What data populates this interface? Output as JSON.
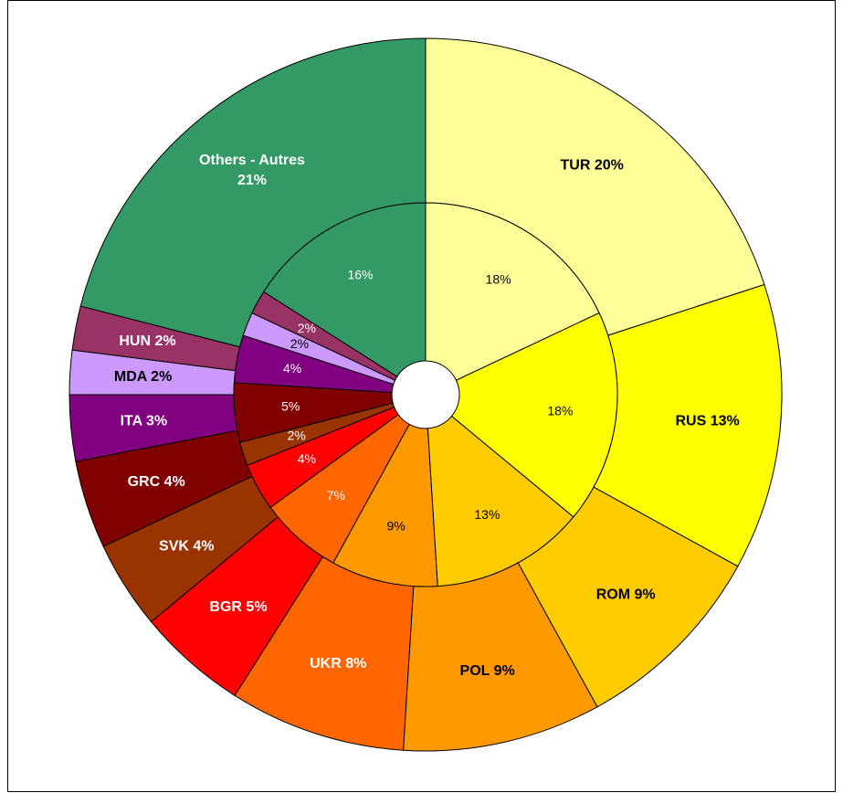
{
  "chart_data": {
    "type": "doughnut",
    "series": [
      {
        "values": [
          20,
          13,
          9,
          9,
          8,
          5,
          4,
          4,
          3,
          2,
          2,
          21
        ],
        "value_labels": [
          "TUR 20%",
          "RUS 13%",
          "ROM 9%",
          "POL 9%",
          "UKR 8%",
          "BGR 5%",
          "SVK 4%",
          "GRC 4%",
          "ITA 3%",
          "MDA 2%",
          "HUN 2%",
          "Others - Autres\n21%"
        ],
        "colors": [
          "#ffff99",
          "#ffff00",
          "#ffcc00",
          "#ff9900",
          "#ff6600",
          "#ff0000",
          "#993300",
          "#800000",
          "#800080",
          "#cc99ff",
          "#993366",
          "#339966"
        ]
      },
      {
        "values": [
          18,
          18,
          13,
          9,
          7,
          4,
          2,
          5,
          4,
          2,
          2,
          16
        ],
        "value_labels": [
          "18%",
          "18%",
          "13%",
          "9%",
          "7%",
          "4%",
          "2%",
          "5%",
          "4%",
          "2%",
          "2%",
          "16%"
        ],
        "colors": [
          "#ffff99",
          "#ffff00",
          "#ffcc00",
          "#ff9900",
          "#ff6600",
          "#ff0000",
          "#993300",
          "#800000",
          "#800080",
          "#cc99ff",
          "#993366",
          "#339966"
        ]
      }
    ]
  }
}
